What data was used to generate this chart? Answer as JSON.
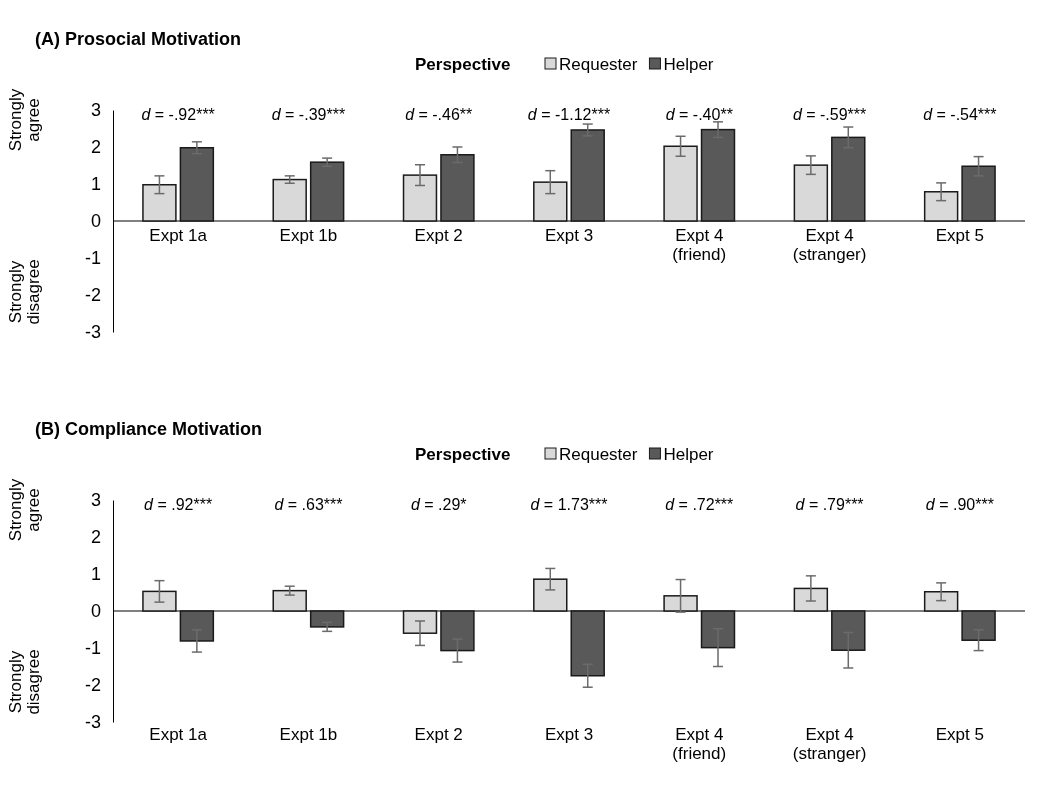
{
  "chart_data": [
    {
      "type": "bar",
      "title": "(A) Prosocial Motivation",
      "legend_title": "Perspective",
      "legend": "top",
      "categories": [
        "Expt 1a",
        "Expt 1b",
        "Expt 2",
        "Expt 3",
        "Expt 4\n(friend)",
        "Expt 4\n(stranger)",
        "Expt 5"
      ],
      "series": [
        {
          "name": "Requester",
          "color": "#d9d9d9",
          "values": [
            0.98,
            1.12,
            1.24,
            1.05,
            2.02,
            1.51,
            0.79
          ],
          "errors": [
            0.24,
            0.1,
            0.28,
            0.31,
            0.27,
            0.25,
            0.24
          ]
        },
        {
          "name": "Helper",
          "color": "#595959",
          "values": [
            1.98,
            1.59,
            1.79,
            2.46,
            2.47,
            2.26,
            1.48
          ],
          "errors": [
            0.16,
            0.11,
            0.21,
            0.16,
            0.21,
            0.28,
            0.26
          ]
        }
      ],
      "ylim": [
        -3,
        3
      ],
      "yticks": [
        -3,
        -2,
        -1,
        0,
        1,
        2,
        3
      ],
      "annotations": [
        "Strongly agree",
        "Strongly disagree",
        "d = -.92***",
        "d = -.39***",
        "d = -.46**",
        "d = -1.12***",
        "d = -.40**",
        "d = -.59***",
        "d = -.54***"
      ]
    },
    {
      "type": "bar",
      "title": "(B) Compliance Motivation",
      "legend_title": "Perspective",
      "legend": "top",
      "categories": [
        "Expt 1a",
        "Expt 1b",
        "Expt 2",
        "Expt 3",
        "Expt 4\n(friend)",
        "Expt 4\n(stranger)",
        "Expt 5"
      ],
      "series": [
        {
          "name": "Requester",
          "color": "#d9d9d9",
          "values": [
            0.53,
            0.55,
            -0.6,
            0.86,
            0.41,
            0.61,
            0.52
          ],
          "errors": [
            0.29,
            0.12,
            0.33,
            0.29,
            0.44,
            0.34,
            0.24
          ]
        },
        {
          "name": "Helper",
          "color": "#595959",
          "values": [
            -0.81,
            -0.43,
            -1.07,
            -1.75,
            -0.99,
            -1.06,
            -0.79
          ],
          "errors": [
            0.3,
            0.12,
            0.31,
            0.31,
            0.51,
            0.48,
            0.28
          ]
        }
      ],
      "ylim": [
        -3,
        3
      ],
      "yticks": [
        -3,
        -2,
        -1,
        0,
        1,
        2,
        3
      ],
      "annotations": [
        "Strongly agree",
        "Strongly disagree",
        "d = .92***",
        "d = .63***",
        "d = .29*",
        "d = 1.73***",
        "d = .72***",
        "d = .79***",
        "d = .90***"
      ]
    }
  ]
}
